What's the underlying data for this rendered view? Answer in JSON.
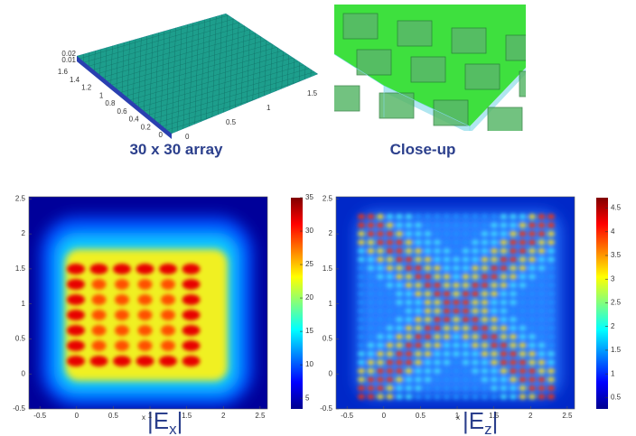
{
  "top_panels": [
    {
      "caption": "30 x 30 array",
      "depth_ticks": [
        1.6,
        1.4,
        1.2,
        1,
        0.8,
        0.6,
        0.4,
        0.2,
        0
      ],
      "width_ticks": [
        0,
        0.5,
        1,
        1.5
      ],
      "height_ticks": [
        0.02,
        0.01
      ]
    },
    {
      "caption": "Close-up"
    }
  ],
  "plots": [
    {
      "xlim": [
        -0.65,
        2.6
      ],
      "ylim": [
        -0.5,
        2.53
      ],
      "xticks": [
        -0.5,
        0,
        0.5,
        1,
        1.5,
        2,
        2.5
      ],
      "yticks": [
        -0.5,
        0,
        0.5,
        1,
        1.5,
        2,
        2.5
      ],
      "xlabel": "x",
      "colorbar": {
        "clim": [
          3.4,
          35
        ],
        "ticks": [
          5,
          10,
          15,
          20,
          25,
          30,
          35
        ]
      },
      "label": [
        "|E",
        "x",
        "|"
      ]
    },
    {
      "xlim": [
        -0.65,
        2.6
      ],
      "ylim": [
        -0.5,
        2.53
      ],
      "xticks": [
        -0.5,
        0,
        0.5,
        1,
        1.5,
        2,
        2.5
      ],
      "yticks": [
        -0.5,
        0,
        0.5,
        1,
        1.5,
        2,
        2.5
      ],
      "xlabel": "x",
      "colorbar": {
        "clim": [
          0.26,
          4.72
        ],
        "ticks": [
          0.5,
          1,
          1.5,
          2,
          2.5,
          3,
          3.5,
          4,
          4.5
        ]
      },
      "label": [
        "|E",
        "z",
        "|"
      ]
    }
  ]
}
